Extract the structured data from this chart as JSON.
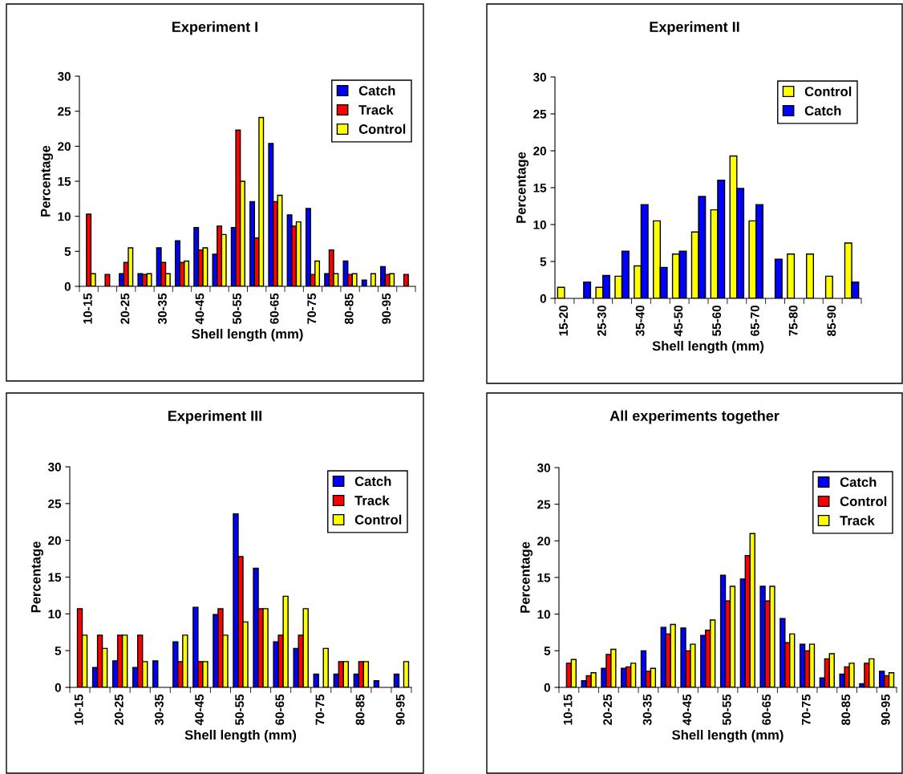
{
  "chart_data": [
    {
      "type": "bar",
      "title": "Experiment I",
      "xlabel": "Shell length (mm)",
      "ylabel": "Percentage",
      "ylim": [
        0,
        30
      ],
      "yticks": [
        0,
        5,
        10,
        15,
        20,
        25,
        30
      ],
      "legend": "top right",
      "grid": false,
      "categories": [
        "10-15",
        null,
        "20-25",
        null,
        "30-35",
        null,
        "40-45",
        null,
        "50-55",
        null,
        "60-65",
        null,
        "70-75",
        null,
        "80-85",
        null,
        "90-95",
        null
      ],
      "series": [
        {
          "name": "Catch",
          "color": "#0000ff",
          "values": [
            null,
            null,
            1.8,
            1.8,
            5.5,
            6.5,
            8.4,
            4.6,
            8.4,
            12.1,
            20.4,
            10.2,
            11.1,
            1.8,
            3.6,
            0.9,
            2.8,
            null
          ]
        },
        {
          "name": "Track",
          "color": "#ff0000",
          "values": [
            10.3,
            1.7,
            3.4,
            1.7,
            3.4,
            3.4,
            5.2,
            8.6,
            22.3,
            6.9,
            12.1,
            8.6,
            1.7,
            5.2,
            1.7,
            null,
            1.7,
            1.7
          ]
        },
        {
          "name": "Control",
          "color": "#ffff00",
          "values": [
            1.8,
            null,
            5.5,
            1.8,
            1.8,
            3.6,
            5.5,
            7.4,
            15,
            24.1,
            13,
            9.2,
            3.6,
            1.8,
            1.8,
            1.8,
            1.8,
            null
          ]
        }
      ]
    },
    {
      "type": "bar",
      "title": "Experiment II",
      "xlabel": "Shell length (mm)",
      "ylabel": "Percentage",
      "ylim": [
        0,
        30
      ],
      "yticks": [
        0,
        5,
        10,
        15,
        20,
        25,
        30
      ],
      "legend": "top right",
      "grid": false,
      "categories": [
        "15-20",
        null,
        "25-30",
        null,
        "35-40",
        null,
        "45-50",
        null,
        "55-60",
        null,
        "65-70",
        null,
        "75-80",
        null,
        "85-90",
        null
      ],
      "series": [
        {
          "name": "Control",
          "color": "#ffff00",
          "values": [
            1.5,
            null,
            1.5,
            3.0,
            4.4,
            10.5,
            6.0,
            9.0,
            12.0,
            19.3,
            10.5,
            null,
            6.0,
            6.0,
            3.0,
            7.5
          ]
        },
        {
          "name": "Catch",
          "color": "#0000ff",
          "values": [
            null,
            2.2,
            3.1,
            6.4,
            12.7,
            4.2,
            6.4,
            13.8,
            16.0,
            14.9,
            12.7,
            5.3,
            null,
            null,
            null,
            2.2
          ]
        }
      ]
    },
    {
      "type": "bar",
      "title": "Experiment III",
      "xlabel": "Shell length (mm)",
      "ylabel": "Percentage",
      "ylim": [
        0,
        30
      ],
      "yticks": [
        0,
        5,
        10,
        15,
        20,
        25,
        30
      ],
      "legend": "top right",
      "grid": false,
      "categories": [
        "10-15",
        null,
        "20-25",
        null,
        "30-35",
        null,
        "40-45",
        null,
        "50-55",
        null,
        "60-65",
        null,
        "70-75",
        null,
        "80-85",
        null,
        "90-95"
      ],
      "series": [
        {
          "name": "Catch",
          "color": "#0000ff",
          "values": [
            null,
            2.7,
            3.6,
            2.7,
            3.6,
            6.2,
            10.9,
            9.9,
            23.6,
            16.2,
            6.2,
            5.3,
            1.8,
            1.8,
            1.8,
            0.9,
            1.8
          ]
        },
        {
          "name": "Track",
          "color": "#ff0000",
          "values": [
            10.7,
            7.1,
            7.1,
            7.1,
            null,
            3.5,
            3.5,
            10.7,
            17.8,
            10.7,
            7.1,
            7.1,
            null,
            3.5,
            3.5,
            null,
            null
          ]
        },
        {
          "name": "Control",
          "color": "#ffff00",
          "values": [
            7.1,
            5.3,
            7.1,
            3.5,
            null,
            7.1,
            3.5,
            7.1,
            8.9,
            10.7,
            12.4,
            10.7,
            5.3,
            3.5,
            3.5,
            null,
            3.5
          ]
        }
      ]
    },
    {
      "type": "bar",
      "title": "All experiments together",
      "xlabel": "Shell length (mm)",
      "ylabel": "Percentage",
      "ylim": [
        0,
        30
      ],
      "yticks": [
        0,
        5,
        10,
        15,
        20,
        25,
        30
      ],
      "legend": "top right",
      "grid": false,
      "categories": [
        "10-15",
        null,
        "20-25",
        null,
        "30-35",
        null,
        "40-45",
        null,
        "50-55",
        null,
        "60-65",
        null,
        "70-75",
        null,
        "80-85",
        null,
        "90-95"
      ],
      "series": [
        {
          "name": "Catch",
          "color": "#0000ff",
          "values": [
            null,
            0.9,
            2.6,
            2.6,
            5.0,
            8.2,
            8.1,
            7.1,
            15.3,
            14.8,
            13.8,
            9.4,
            5.9,
            1.3,
            1.8,
            0.5,
            2.2
          ]
        },
        {
          "name": "Control",
          "color": "#ff0000",
          "values": [
            3.3,
            1.6,
            4.5,
            2.8,
            2.2,
            7.3,
            5.0,
            7.8,
            11.8,
            18.0,
            11.8,
            6.1,
            5.0,
            3.9,
            2.8,
            3.3,
            1.6
          ]
        },
        {
          "name": "Track",
          "color": "#ffff00",
          "values": [
            3.8,
            2.0,
            5.2,
            3.3,
            2.6,
            8.6,
            5.9,
            9.2,
            13.8,
            21.0,
            13.8,
            7.3,
            5.9,
            4.6,
            3.3,
            3.9,
            2.0
          ]
        }
      ]
    }
  ]
}
